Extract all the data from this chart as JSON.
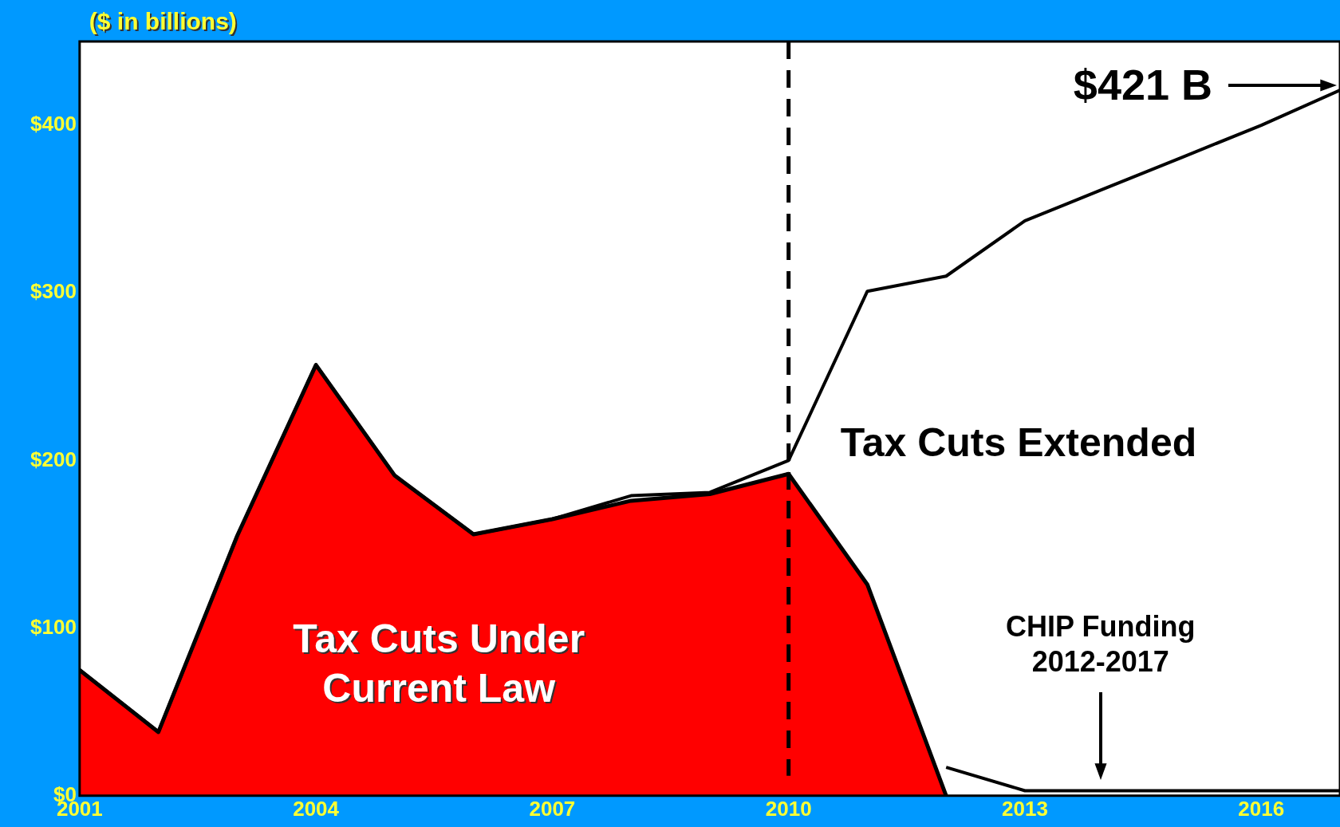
{
  "chart_data": {
    "type": "area",
    "ylabel": "($ in billions)",
    "x": [
      2001,
      2002,
      2003,
      2004,
      2005,
      2006,
      2007,
      2008,
      2009,
      2010,
      2011,
      2012,
      2013,
      2014,
      2015,
      2016,
      2017
    ],
    "series": [
      {
        "name": "Tax Cuts Extended",
        "type": "line",
        "color": "#000000",
        "values": [
          75,
          38,
          155,
          257,
          191,
          156,
          165,
          179,
          181,
          200,
          301,
          310,
          343,
          362,
          381,
          400,
          421
        ]
      },
      {
        "name": "Tax Cuts Under Current Law",
        "type": "area",
        "color": "#ff0000",
        "values": [
          75,
          38,
          155,
          257,
          191,
          156,
          165,
          176,
          180,
          192,
          126,
          0,
          null,
          null,
          null,
          null,
          null
        ]
      },
      {
        "type": "line",
        "color": "#000000",
        "values": [
          null,
          null,
          null,
          null,
          null,
          null,
          null,
          null,
          null,
          null,
          null,
          17,
          3,
          3,
          3,
          3,
          3
        ]
      }
    ],
    "xlim": [
      2001,
      2017
    ],
    "xticks": [
      2001,
      2004,
      2007,
      2010,
      2013,
      2016
    ],
    "ylim": [
      0,
      450
    ],
    "yticks": [
      {
        "value": 0,
        "label": "$0"
      },
      {
        "value": 100,
        "label": "$100"
      },
      {
        "value": 200,
        "label": "$200"
      },
      {
        "value": 300,
        "label": "$300"
      },
      {
        "value": 400,
        "label": "$400"
      }
    ],
    "ref_lines": [
      {
        "axis": "x",
        "value": 2010,
        "color": "#000000",
        "line_style": "dashed"
      }
    ],
    "annotations": [
      {
        "text": "$421 B",
        "x": 2017,
        "y": 421
      },
      "CHIP Funding\n2012-2017"
    ],
    "marker": "none",
    "grid": false,
    "legend": false
  }
}
